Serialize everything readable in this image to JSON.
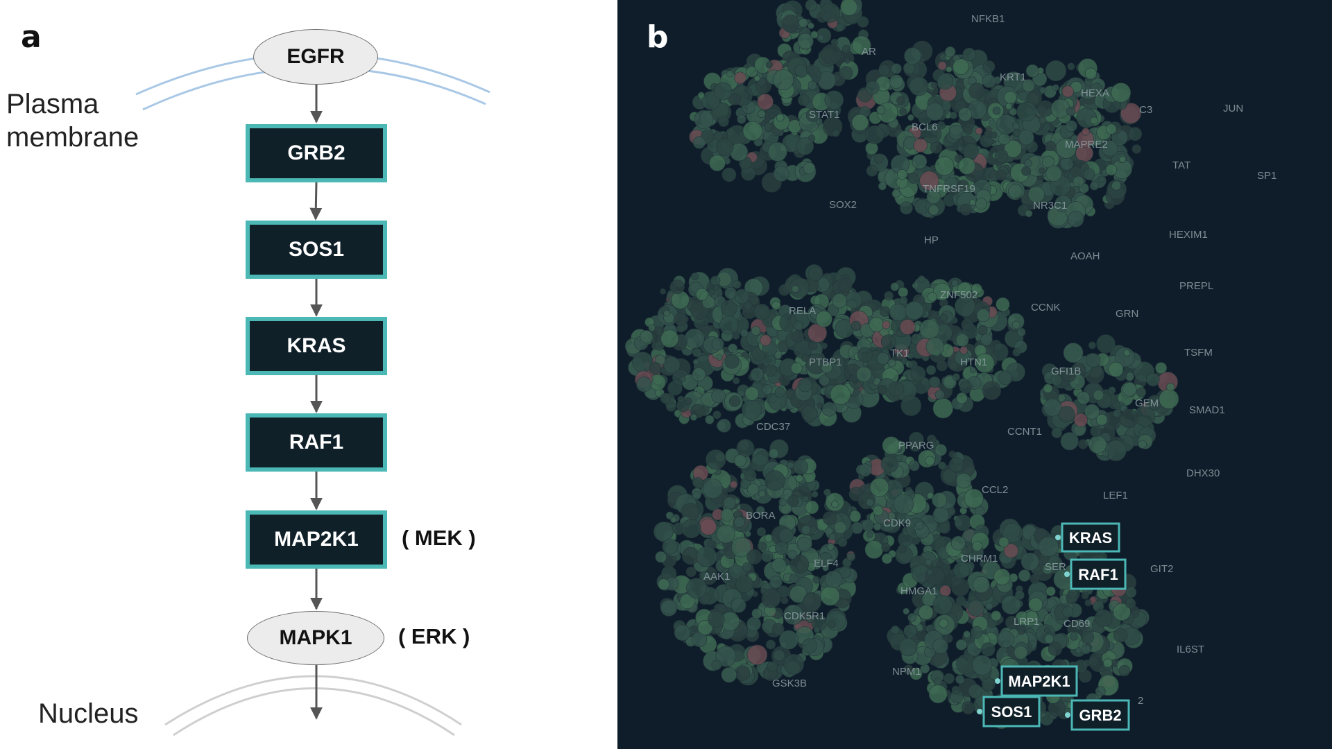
{
  "panel_a": {
    "letter": "a",
    "membrane_label_1": "Plasma",
    "membrane_label_2": "membrane",
    "nucleus_label": "Nucleus",
    "nodes": {
      "egfr": "EGFR",
      "grb2": "GRB2",
      "sos1": "SOS1",
      "kras": "KRAS",
      "raf1": "RAF1",
      "map2k1": "MAP2K1",
      "mapk1": "MAPK1"
    },
    "aliases": {
      "map2k1": "( MEK )",
      "mapk1": "( ERK )"
    }
  },
  "panel_b": {
    "letter": "b",
    "colors": {
      "background": "#0f1d2a",
      "highlight_border": "#4cb8b6"
    },
    "gene_labels": [
      "NFKB1",
      "AR",
      "KRT1",
      "HEXA",
      "STAT1",
      "BCL6",
      "C3",
      "JUN",
      "MAPRE2",
      "TAT",
      "SP1",
      "TNFRSF19",
      "SOX2",
      "NR3C1",
      "HEXIM1",
      "HP",
      "AOAH",
      "PREPL",
      "ZNF502",
      "RELA",
      "CCNK",
      "GRN",
      "TK1",
      "HTN1",
      "PTBP1",
      "TSFM",
      "GFI1B",
      "GEM",
      "SMAD1",
      "CDC37",
      "CCNT1",
      "PPARG",
      "DHX30",
      "LEF1",
      "CCL2",
      "BORA",
      "CDK9",
      "SER",
      "GIT2",
      "CHRM1",
      "AAK1",
      "ELF4",
      "HMGA1",
      "CDK5R1",
      "LRP1",
      "CD69",
      "IL6ST",
      "GSK3B",
      "NPM1",
      "2"
    ],
    "highlight_labels": {
      "kras": "KRAS",
      "raf1": "RAF1",
      "map2k1": "MAP2K1",
      "sos1": "SOS1",
      "grb2": "GRB2"
    }
  }
}
